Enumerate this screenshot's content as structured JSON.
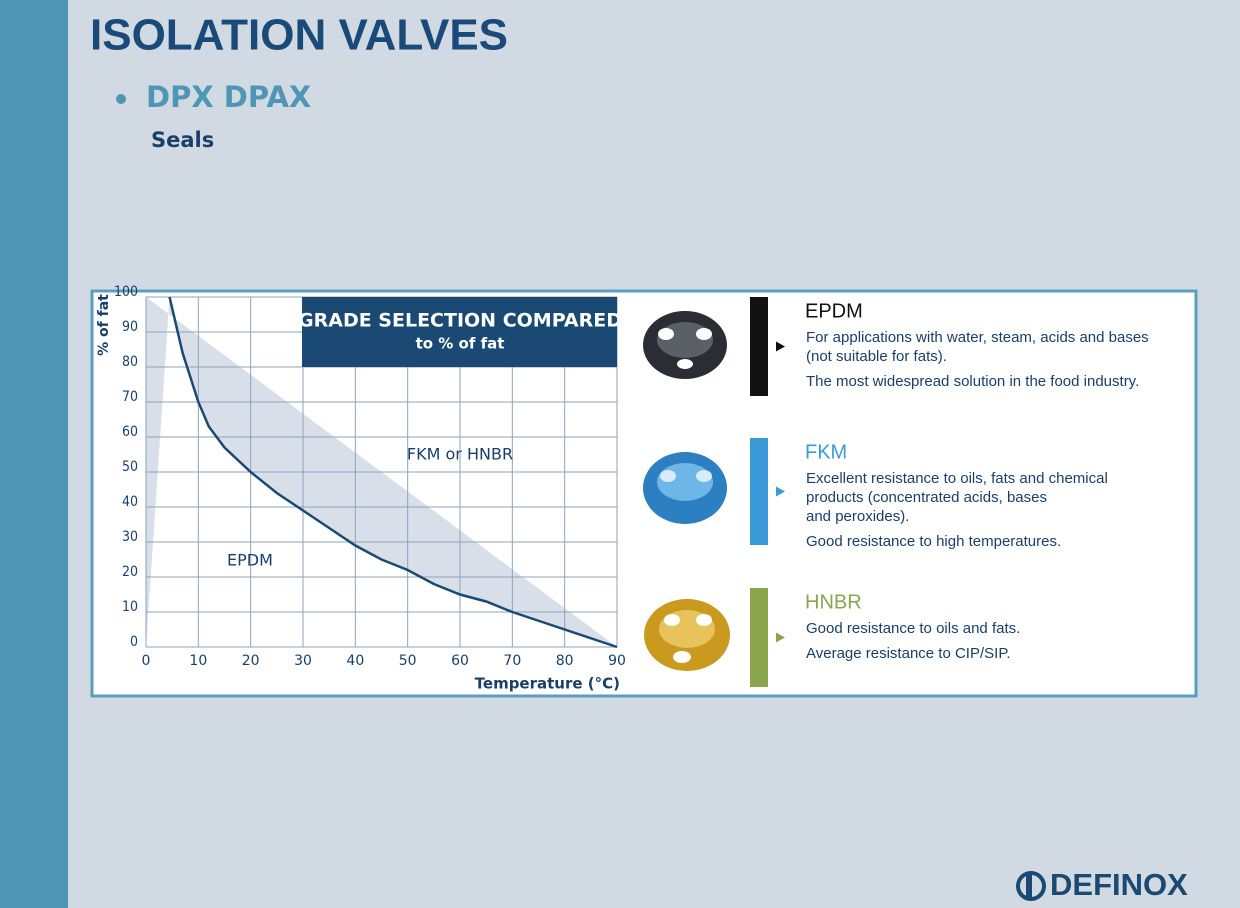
{
  "slide": {
    "title": "ISOLATION VALVES",
    "bullet": "DPX DPAX",
    "subtitle": "Seals"
  },
  "chart_data": {
    "type": "line",
    "title": "GRADE SELECTION COMPARED",
    "subtitle": "to % of fat",
    "x_label": "Temperature (°C)",
    "y_label": "% of fat",
    "x": [
      4.5,
      7,
      10,
      12,
      15,
      20,
      25,
      30,
      35,
      40,
      45,
      50,
      55,
      60,
      65,
      70,
      75,
      80,
      85,
      90
    ],
    "values": [
      100,
      84,
      70,
      63,
      57,
      50,
      44,
      39,
      34,
      29,
      25,
      22,
      18,
      15,
      13,
      10,
      7.5,
      5,
      2.5,
      0
    ],
    "color": "#1a4a73",
    "area_color": "#d9dfe9",
    "grid": true,
    "xlim": [
      0,
      90
    ],
    "ylim": [
      0,
      100
    ],
    "xticks": [
      0,
      10,
      20,
      30,
      40,
      50,
      60,
      70,
      80,
      90
    ],
    "yticks": [
      0,
      10,
      20,
      30,
      40,
      50,
      60,
      70,
      80,
      90,
      100
    ],
    "annotations": [
      "FKM or HNBR",
      "EPDM"
    ]
  },
  "seals": [
    {
      "name": "EPDM",
      "color": "#111111",
      "lines": [
        "For applications with water, steam, acids and bases",
        "(not suitable for fats).",
        "The most widespread solution in the food industry."
      ]
    },
    {
      "name": "FKM",
      "color": "#3a9ad9",
      "lines": [
        "Excellent resistance to oils, fats and chemical",
        "products (concentrated acids, bases",
        "and peroxides).",
        "Good resistance to high temperatures."
      ]
    },
    {
      "name": "HNBR",
      "color": "#8aa64c",
      "lines": [
        "Good resistance to oils and fats.",
        "Average resistance to CIP/SIP."
      ]
    }
  ],
  "logo": "DEFINOX"
}
